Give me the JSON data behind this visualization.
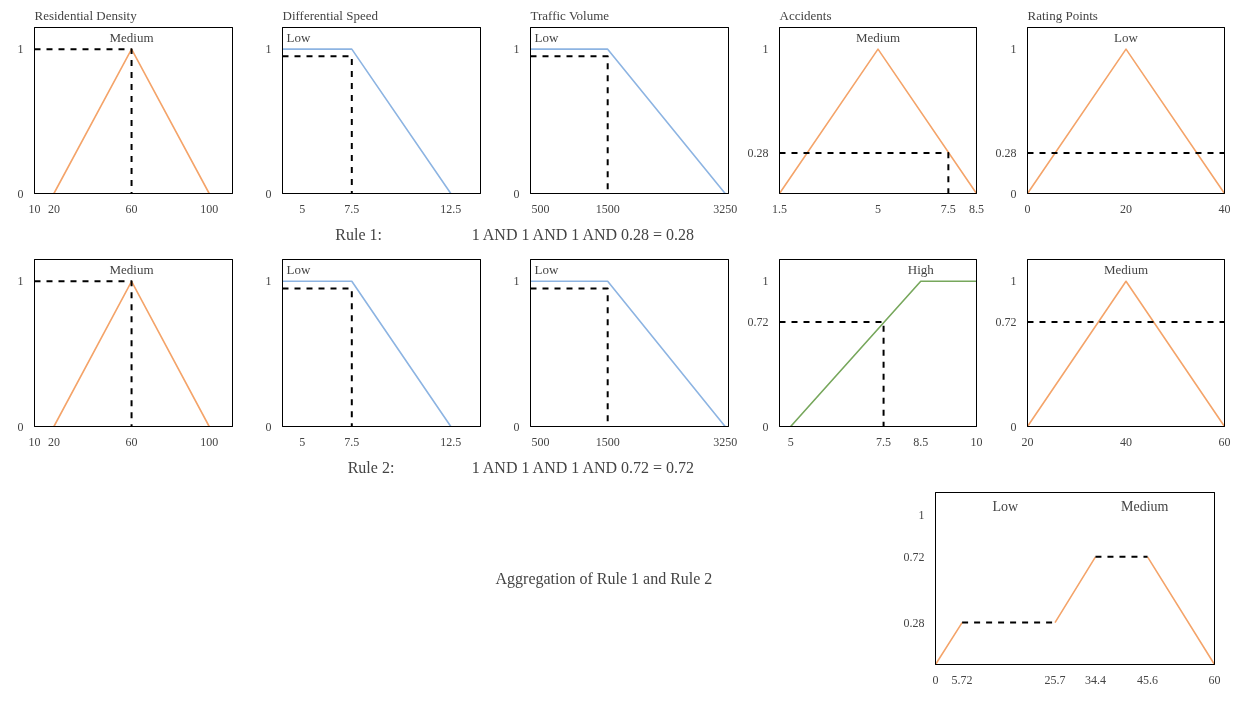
{
  "chart_data": [
    {
      "type": "line",
      "title": "Residential Density",
      "xlim": [
        10,
        112
      ],
      "ylim": [
        0,
        1.15
      ],
      "xticks": [
        10,
        20,
        60,
        100
      ],
      "yticks": [
        0,
        1
      ],
      "grid": false,
      "legend": false,
      "series": [
        {
          "name": "Medium",
          "color": "#f4a46a",
          "x": [
            20,
            60,
            100
          ],
          "values": [
            0,
            1,
            0
          ]
        },
        {
          "color": "#000000",
          "line_style": "dashed",
          "x": [
            10,
            60,
            60
          ],
          "values": [
            1,
            1,
            0
          ]
        }
      ]
    },
    {
      "type": "line",
      "title": "Differential Speed",
      "xlim": [
        4,
        14
      ],
      "ylim": [
        0,
        1.15
      ],
      "xticks": [
        5,
        7.5,
        12.5
      ],
      "yticks": [
        0,
        1
      ],
      "grid": false,
      "legend": false,
      "series": [
        {
          "name": "Low",
          "color": "#8db4e2",
          "x": [
            4,
            7.5,
            12.5
          ],
          "values": [
            1,
            1,
            0
          ]
        },
        {
          "color": "#000000",
          "line_style": "dashed",
          "x": [
            4,
            7.5,
            7.5
          ],
          "values": [
            0.95,
            0.95,
            0
          ]
        }
      ]
    },
    {
      "type": "line",
      "title": "Traffic Volume",
      "xlim": [
        350,
        3300
      ],
      "ylim": [
        0,
        1.15
      ],
      "xticks": [
        500,
        1500,
        3250
      ],
      "yticks": [
        0,
        1
      ],
      "grid": false,
      "legend": false,
      "series": [
        {
          "name": "Low",
          "color": "#8db4e2",
          "x": [
            350,
            1500,
            3250
          ],
          "values": [
            1,
            1,
            0
          ]
        },
        {
          "color": "#000000",
          "line_style": "dashed",
          "x": [
            350,
            1500,
            1500
          ],
          "values": [
            0.95,
            0.95,
            0
          ]
        }
      ]
    },
    {
      "type": "line",
      "title": "Accidents",
      "xlim": [
        1.5,
        8.5
      ],
      "ylim": [
        0,
        1.15
      ],
      "xticks": [
        1.5,
        5,
        7.5,
        8.5
      ],
      "yticks": [
        0.28,
        1
      ],
      "grid": false,
      "legend": false,
      "series": [
        {
          "name": "Medium",
          "color": "#f4a46a",
          "x": [
            1.5,
            5,
            8.5
          ],
          "values": [
            0,
            1,
            0
          ]
        },
        {
          "color": "#000000",
          "line_style": "dashed",
          "x": [
            1.5,
            7.5,
            7.5
          ],
          "values": [
            0.28,
            0.28,
            0
          ]
        }
      ]
    },
    {
      "type": "line",
      "title": "Rating Points",
      "xlim": [
        0,
        40
      ],
      "ylim": [
        0,
        1.15
      ],
      "xticks": [
        0,
        20,
        40
      ],
      "yticks": [
        0,
        0.28,
        1
      ],
      "grid": false,
      "legend": false,
      "series": [
        {
          "name": "Low",
          "color": "#f4a46a",
          "x": [
            0,
            20,
            40
          ],
          "values": [
            0,
            1,
            0
          ]
        }
      ],
      "ref_lines": [
        {
          "axis": "y",
          "value": 0.28,
          "color": "#000000",
          "line_style": "dashed"
        }
      ]
    },
    {
      "type": "other",
      "annotations": [
        "Rule 1:",
        "1 AND 1 AND 1 AND 0.28 = 0.28"
      ]
    },
    {
      "type": "line",
      "xlim": [
        10,
        112
      ],
      "ylim": [
        0,
        1.15
      ],
      "xticks": [
        10,
        20,
        60,
        100
      ],
      "yticks": [
        0,
        1
      ],
      "grid": false,
      "legend": false,
      "series": [
        {
          "name": "Medium",
          "color": "#f4a46a",
          "x": [
            20,
            60,
            100
          ],
          "values": [
            0,
            1,
            0
          ]
        },
        {
          "color": "#000000",
          "line_style": "dashed",
          "x": [
            10,
            60,
            60
          ],
          "values": [
            1,
            1,
            0
          ]
        }
      ]
    },
    {
      "type": "line",
      "xlim": [
        4,
        14
      ],
      "ylim": [
        0,
        1.15
      ],
      "xticks": [
        5,
        7.5,
        12.5
      ],
      "yticks": [
        0,
        1
      ],
      "grid": false,
      "legend": false,
      "series": [
        {
          "name": "Low",
          "color": "#8db4e2",
          "x": [
            4,
            7.5,
            12.5
          ],
          "values": [
            1,
            1,
            0
          ]
        },
        {
          "color": "#000000",
          "line_style": "dashed",
          "x": [
            4,
            7.5,
            7.5
          ],
          "values": [
            0.95,
            0.95,
            0
          ]
        }
      ]
    },
    {
      "type": "line",
      "xlim": [
        350,
        3300
      ],
      "ylim": [
        0,
        1.15
      ],
      "xticks": [
        500,
        1500,
        3250
      ],
      "yticks": [
        0,
        1
      ],
      "grid": false,
      "legend": false,
      "series": [
        {
          "name": "Low",
          "color": "#8db4e2",
          "x": [
            350,
            1500,
            3250
          ],
          "values": [
            1,
            1,
            0
          ]
        },
        {
          "color": "#000000",
          "line_style": "dashed",
          "x": [
            350,
            1500,
            1500
          ],
          "values": [
            0.95,
            0.95,
            0
          ]
        }
      ]
    },
    {
      "type": "line",
      "xlim": [
        4.7,
        10
      ],
      "ylim": [
        0,
        1.15
      ],
      "xticks": [
        5,
        7.5,
        8.5,
        10
      ],
      "yticks": [
        0,
        0.72,
        1
      ],
      "grid": false,
      "legend": false,
      "series": [
        {
          "name": "High",
          "color": "#77a75c",
          "x": [
            5,
            8.5,
            10
          ],
          "values": [
            0,
            1,
            1
          ]
        },
        {
          "color": "#000000",
          "line_style": "dashed",
          "x": [
            4.7,
            7.5,
            7.5
          ],
          "values": [
            0.72,
            0.72,
            0
          ]
        }
      ]
    },
    {
      "type": "line",
      "xlim": [
        20,
        60
      ],
      "ylim": [
        0,
        1.15
      ],
      "xticks": [
        20,
        40,
        60
      ],
      "yticks": [
        0,
        0.72,
        1
      ],
      "grid": false,
      "legend": false,
      "series": [
        {
          "name": "Medium",
          "color": "#f4a46a",
          "x": [
            20,
            40,
            60
          ],
          "values": [
            0,
            1,
            0
          ]
        }
      ],
      "ref_lines": [
        {
          "axis": "y",
          "value": 0.72,
          "color": "#000000",
          "line_style": "dashed"
        }
      ]
    },
    {
      "type": "other",
      "annotations": [
        "Rule 2:",
        "1 AND 1 AND 1 AND 0.72 = 0.72"
      ]
    },
    {
      "type": "other",
      "annotations": [
        "Aggregation of Rule 1 and Rule 2"
      ]
    },
    {
      "type": "line",
      "xlim": [
        0,
        60
      ],
      "ylim": [
        0,
        1.15
      ],
      "xticks": [
        0,
        5.72,
        25.7,
        34.4,
        45.6,
        60
      ],
      "yticks": [
        0.28,
        0.72,
        1
      ],
      "grid": false,
      "legend": false,
      "annotations": [
        "Low",
        "Medium"
      ],
      "series": [
        {
          "color": "#f4a46a",
          "x": [
            0,
            5.72,
            15,
            25.7,
            34.4,
            40,
            45.6,
            60
          ],
          "values": [
            0,
            0.28,
            null,
            0.28,
            0.72,
            null,
            0.72,
            0
          ]
        },
        {
          "color": "#000000",
          "line_style": "dashed",
          "x": [
            5.72,
            25.7,
            30,
            34.4,
            45.6
          ],
          "values": [
            0.28,
            0.28,
            null,
            0.72,
            0.72
          ]
        }
      ]
    }
  ]
}
